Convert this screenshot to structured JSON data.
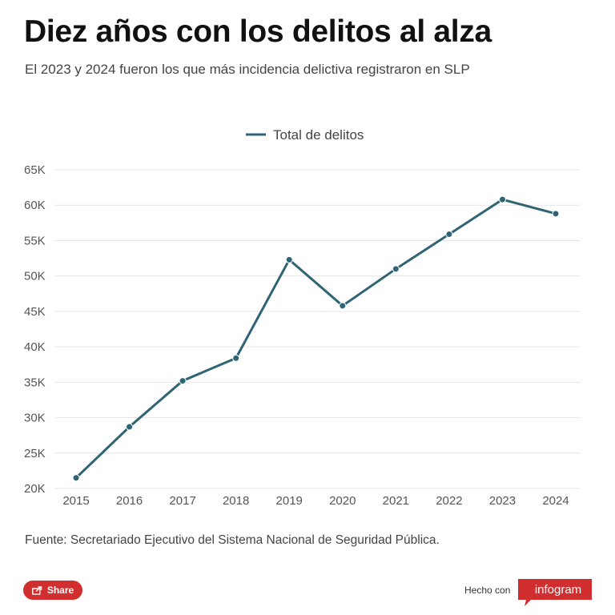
{
  "header": {
    "title": "Diez años con los delitos al alza",
    "subtitle": "El 2023 y 2024 fueron los que más incidencia delictiva registraron en SLP"
  },
  "chart_data": {
    "type": "line",
    "title": "Diez años con los delitos al alza",
    "subtitle": "El 2023 y 2024 fueron los que más incidencia delictiva registraron en SLP",
    "x": [
      "2015",
      "2016",
      "2017",
      "2018",
      "2019",
      "2020",
      "2021",
      "2022",
      "2023",
      "2024"
    ],
    "series": [
      {
        "name": "Total de delitos",
        "values": [
          21500,
          28700,
          35200,
          38400,
          52300,
          45800,
          51000,
          55900,
          60800,
          58800
        ]
      }
    ],
    "ylim": [
      20000,
      65000
    ],
    "yticks": [
      20000,
      25000,
      30000,
      35000,
      40000,
      45000,
      50000,
      55000,
      60000,
      65000
    ],
    "ytick_labels": [
      "20K",
      "25K",
      "30K",
      "35K",
      "40K",
      "45K",
      "50K",
      "55K",
      "60K",
      "65K"
    ],
    "xlabel": "",
    "ylabel": "",
    "legend_position": "top-center",
    "grid": true,
    "line_color": "#2f6475"
  },
  "footer": {
    "source": "Fuente: Secretariado Ejecutivo del Sistema Nacional de Seguridad Pública.",
    "share_label": "Share",
    "made_with": "Hecho con",
    "brand": "infogram"
  },
  "colors": {
    "share_button": "#d12f2f",
    "brand": "#d12f2f",
    "gridline": "#e6e6e6"
  }
}
